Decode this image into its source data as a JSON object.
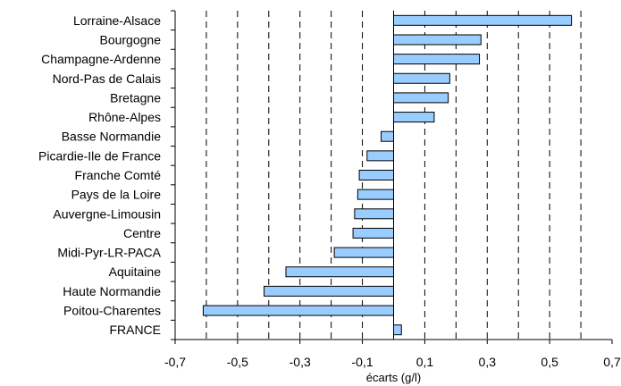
{
  "chart_data": {
    "type": "bar",
    "orientation": "horizontal",
    "categories": [
      "Lorraine-Alsace",
      "Bourgogne",
      "Champagne-Ardenne",
      "Nord-Pas de Calais",
      "Bretagne",
      "Rhône-Alpes",
      "Basse Normandie",
      "Picardie-Ile de France",
      "Franche Comté",
      "Pays de la Loire",
      "Auvergne-Limousin",
      "Centre",
      "Midi-Pyr-LR-PACA",
      "Aquitaine",
      "Haute Normandie",
      "Poitou-Charentes",
      "FRANCE"
    ],
    "values": [
      0.57,
      0.28,
      0.275,
      0.18,
      0.175,
      0.13,
      -0.04,
      -0.085,
      -0.11,
      -0.115,
      -0.125,
      -0.13,
      -0.19,
      -0.345,
      -0.415,
      -0.61,
      0.025
    ],
    "xlabel": "écarts (g/l)",
    "xlim": [
      -0.7,
      0.7
    ],
    "xticks": [
      -0.7,
      -0.5,
      -0.3,
      -0.1,
      0.1,
      0.3,
      0.5,
      0.7
    ],
    "xtick_labels": [
      "-0,7",
      "-0,5",
      "-0,3",
      "-0,1",
      "0,1",
      "0,3",
      "0,5",
      "0,7"
    ],
    "gridlines": [
      -0.6,
      -0.5,
      -0.4,
      -0.3,
      -0.2,
      -0.1,
      0.1,
      0.2,
      0.3,
      0.4,
      0.5,
      0.6
    ],
    "grid": "dashed vertical",
    "legend": "none",
    "bar_color": "#99ccff",
    "bar_edge_color": "#000000"
  }
}
